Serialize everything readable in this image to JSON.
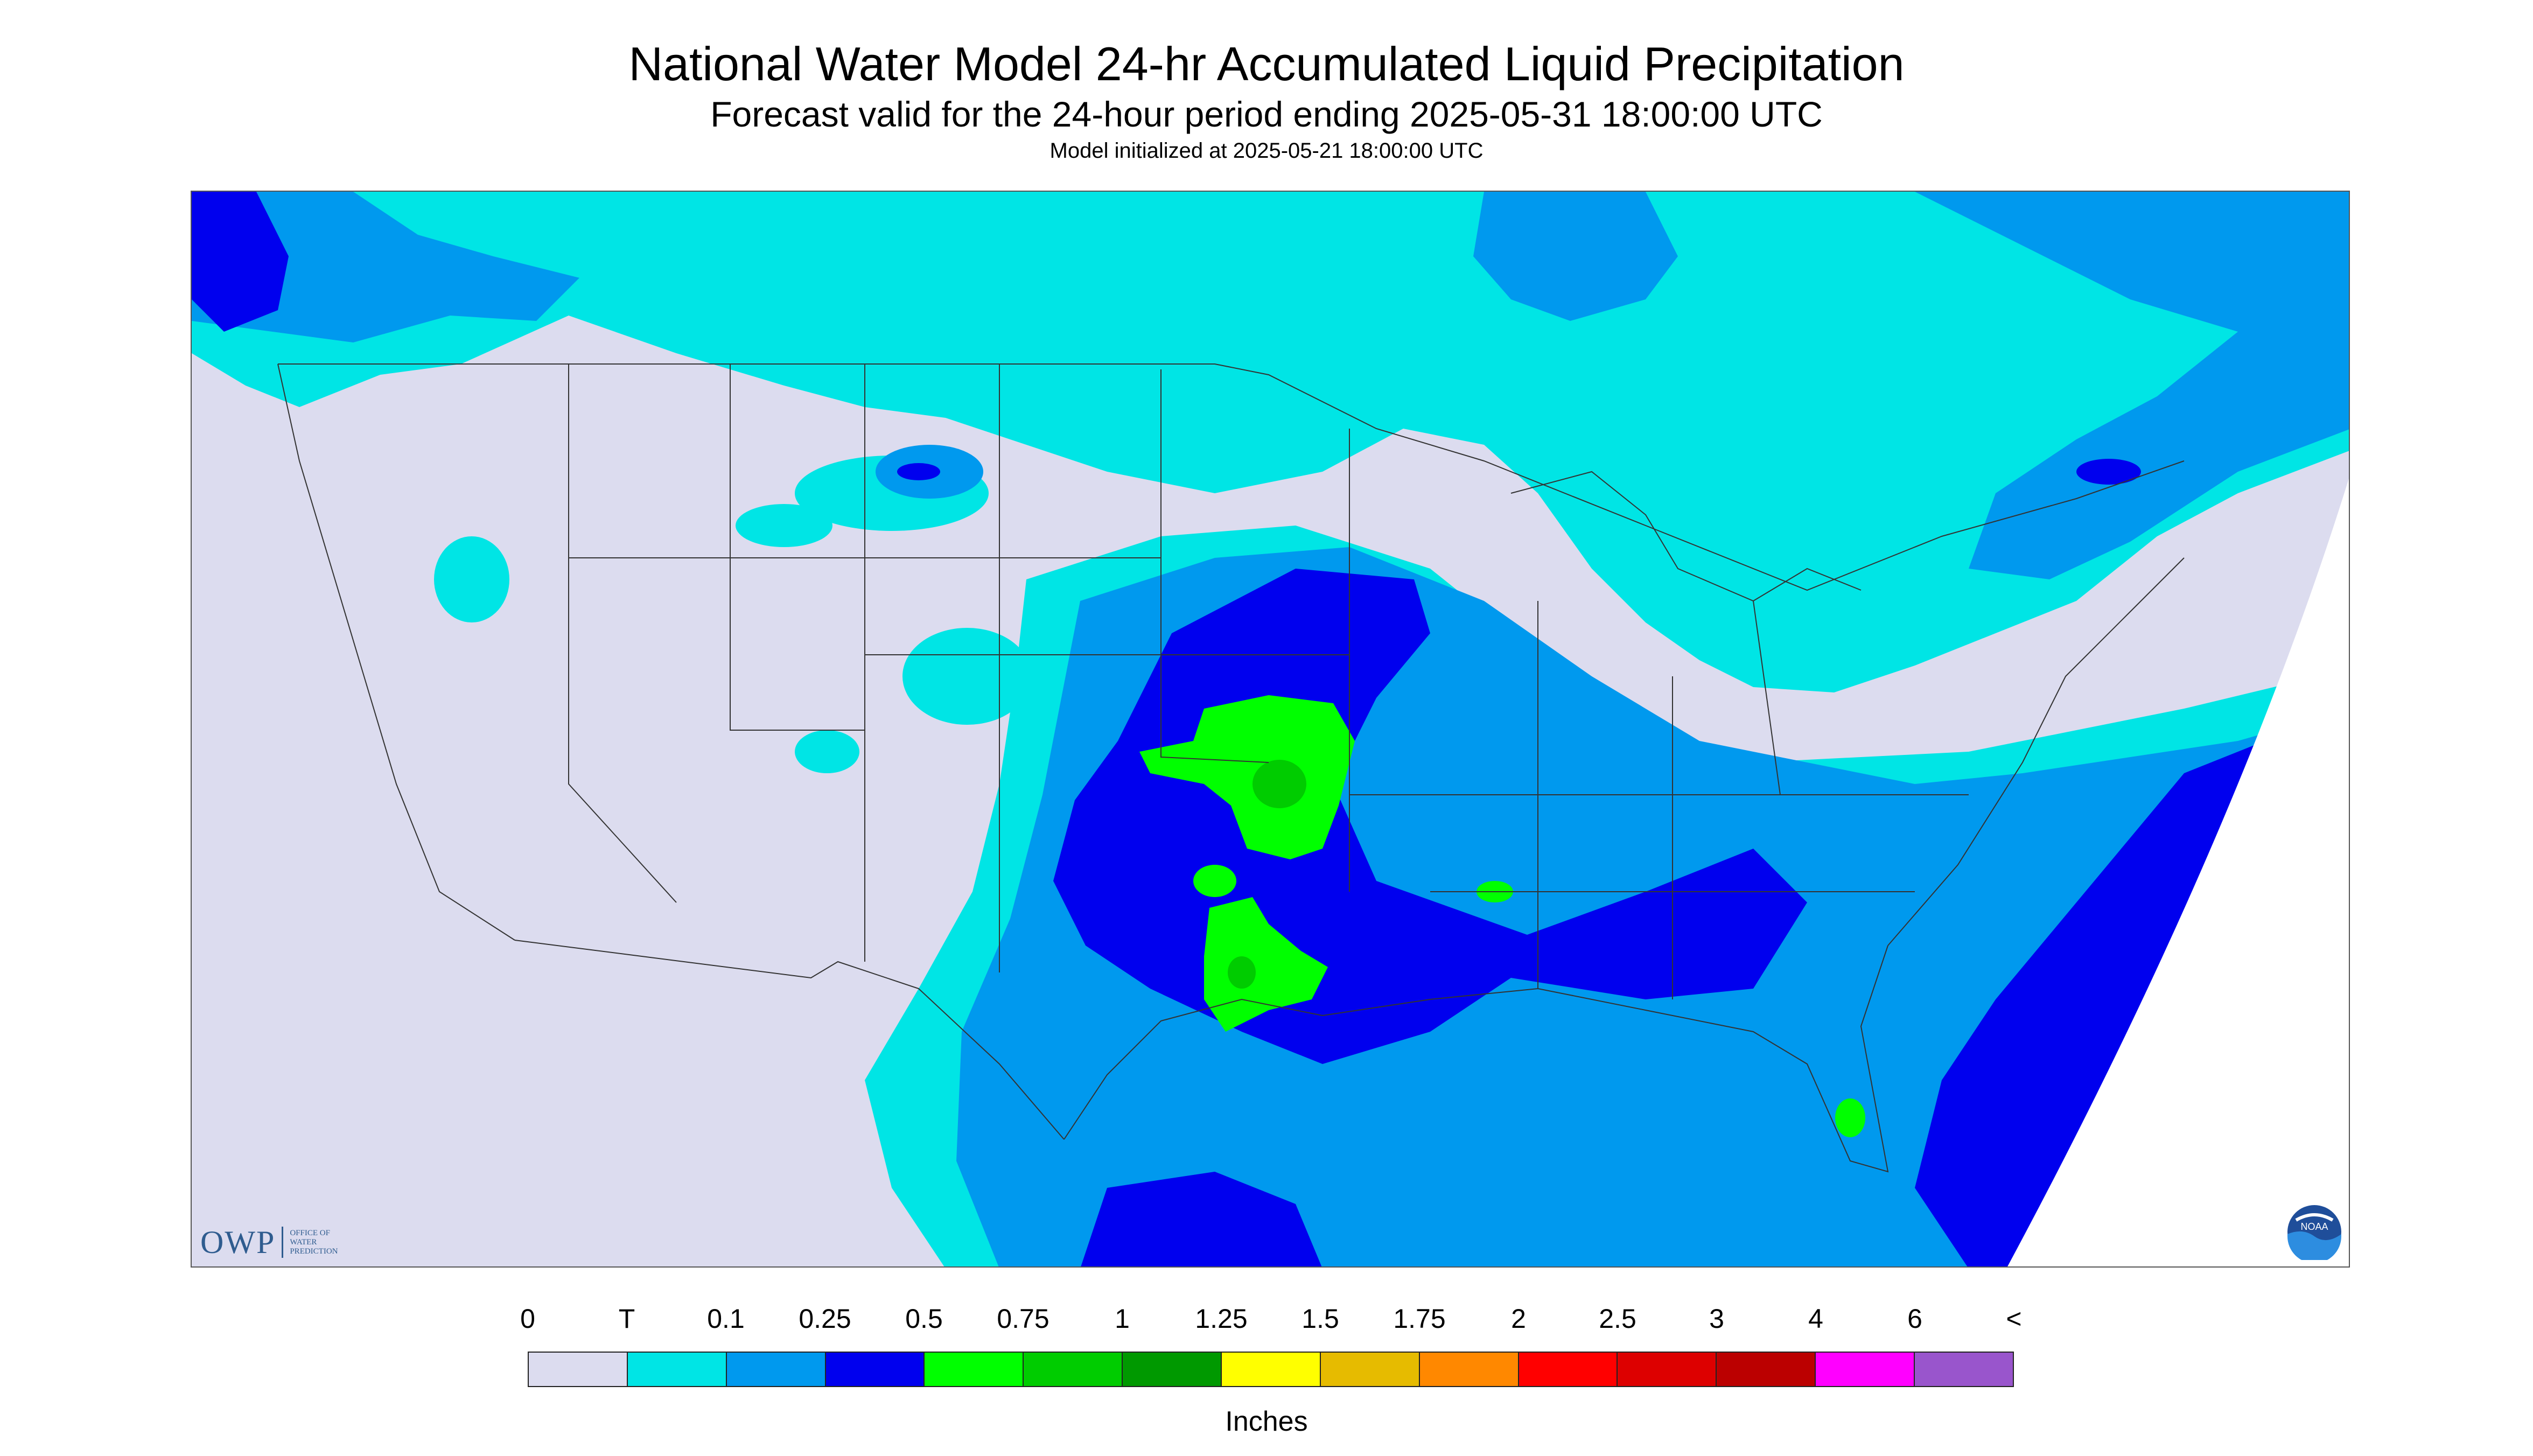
{
  "title": "National Water Model 24-hr Accumulated Liquid Precipitation",
  "subtitle": "Forecast valid for the 24-hour period ending 2025-05-31 18:00:00 UTC",
  "model_init": "Model initialized at 2025-05-21 18:00:00 UTC",
  "logos": {
    "owp_mark": "OWP",
    "owp_lines": [
      "OFFICE OF",
      "WATER",
      "PREDICTION"
    ],
    "noaa": "NOAA"
  },
  "legend": {
    "units": "Inches",
    "ticks": [
      "0",
      "T",
      "0.1",
      "0.25",
      "0.5",
      "0.75",
      "1",
      "1.25",
      "1.5",
      "1.75",
      "2",
      "2.5",
      "3",
      "4",
      "6",
      "<"
    ],
    "colors": [
      "#dcdcef",
      "#00e5e5",
      "#0099ee",
      "#0000ee",
      "#00ff00",
      "#00cc00",
      "#009900",
      "#ffff00",
      "#e6bb00",
      "#ff8800",
      "#ff0000",
      "#dd0000",
      "#bb0000",
      "#ff00ff",
      "#9955cc"
    ]
  },
  "map": {
    "background": "#dcdcef",
    "color_trace": "#00e5e5",
    "color_01": "#0099ee",
    "color_025": "#0000ee",
    "color_05": "#00ff00",
    "color_075": "#00cc00",
    "region_features": [
      {
        "name": "southern-plains-heavy-rain",
        "level": "0.5-1 in"
      },
      {
        "name": "gulf-coast-rain",
        "level": "0.25-0.5 in"
      },
      {
        "name": "atlantic-offshore-rain",
        "level": "0.25-1 in"
      },
      {
        "name": "canada-light-rain",
        "level": "T-0.1 in"
      }
    ]
  }
}
